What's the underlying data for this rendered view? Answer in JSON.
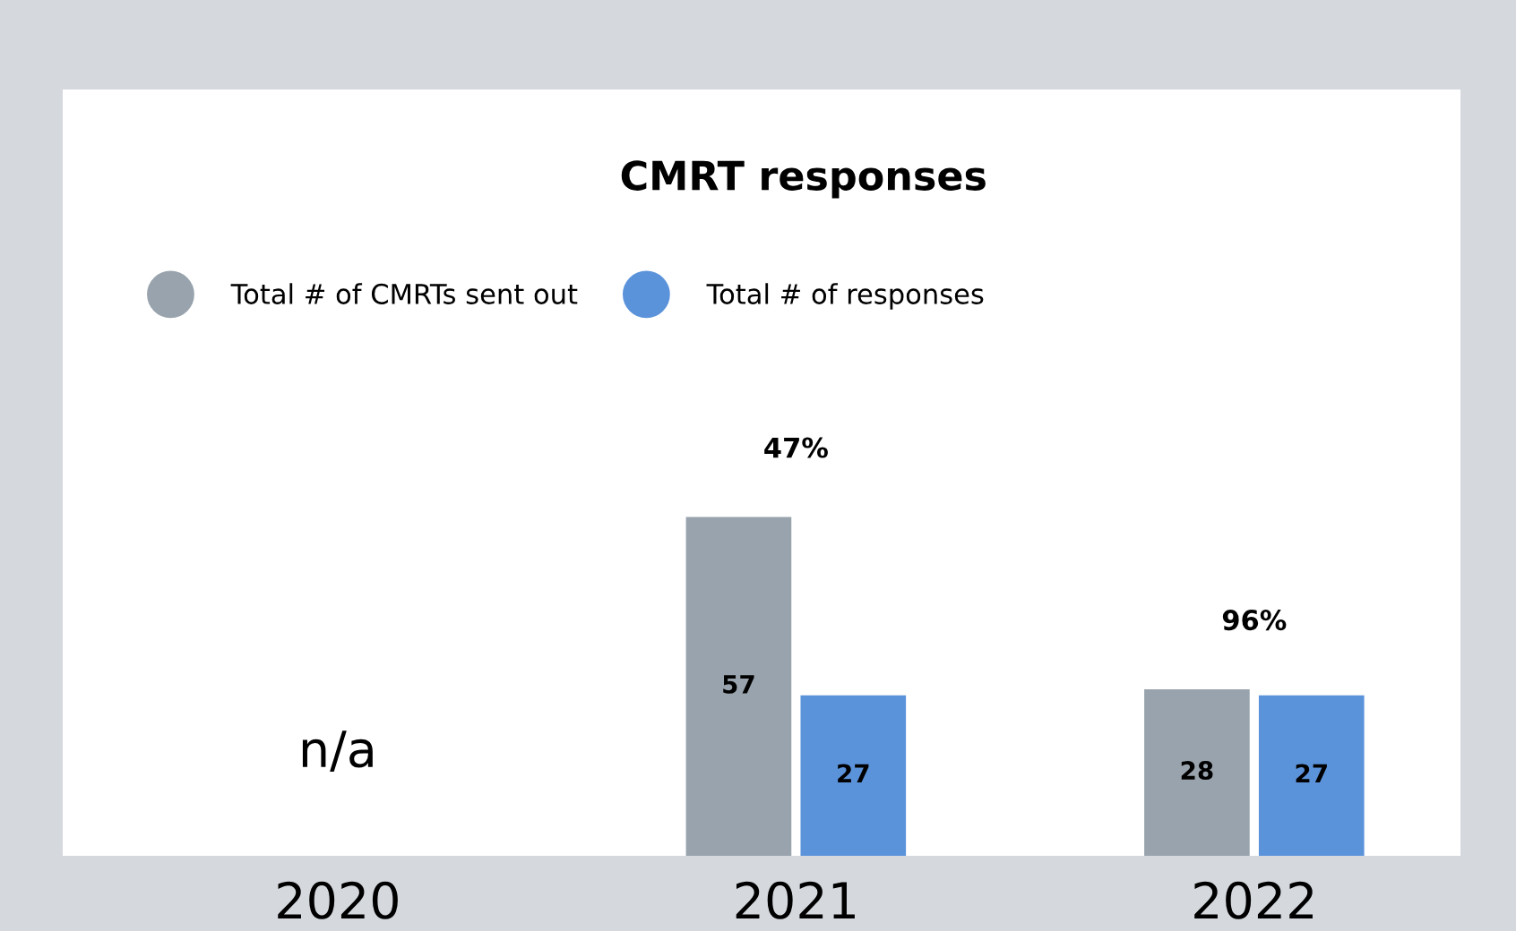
{
  "chart_data": {
    "type": "bar",
    "title": "CMRT responses",
    "categories": [
      "2020",
      "2021",
      "2022"
    ],
    "series": [
      {
        "name": "Total # of CMRTs sent out",
        "color": "#99a3ad",
        "values": [
          null,
          57,
          28
        ]
      },
      {
        "name": "Total # of responses",
        "color": "#5b93db",
        "values": [
          null,
          27,
          27
        ]
      }
    ],
    "data_labels": true,
    "legend": "top left",
    "grid": false,
    "annotations": [
      "n/a",
      "47%",
      "96%"
    ]
  }
}
